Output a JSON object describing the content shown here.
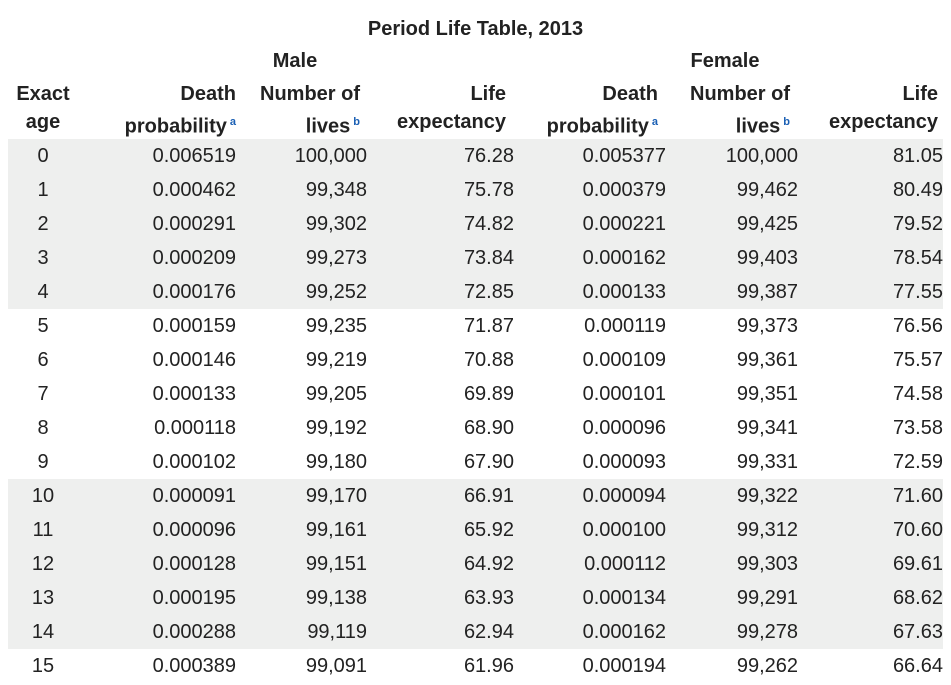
{
  "title": "Period Life Table, 2013",
  "groups": {
    "male": "Male",
    "female": "Female"
  },
  "headers": {
    "age": [
      "Exact",
      "age"
    ],
    "male_death": [
      "Death",
      "probability"
    ],
    "male_lives": [
      "Number of",
      "lives"
    ],
    "male_expectancy": [
      "Life",
      "expectancy"
    ],
    "female_death": [
      "Death",
      "probability"
    ],
    "female_lives": [
      "Number of",
      "lives"
    ],
    "female_expectancy": [
      "Life",
      "expectancy"
    ],
    "note_a": "a",
    "note_b": "b"
  },
  "rows": [
    [
      "0",
      "0.006519",
      "100,000",
      "76.28",
      "0.005377",
      "100,000",
      "81.05"
    ],
    [
      "1",
      "0.000462",
      "99,348",
      "75.78",
      "0.000379",
      "99,462",
      "80.49"
    ],
    [
      "2",
      "0.000291",
      "99,302",
      "74.82",
      "0.000221",
      "99,425",
      "79.52"
    ],
    [
      "3",
      "0.000209",
      "99,273",
      "73.84",
      "0.000162",
      "99,403",
      "78.54"
    ],
    [
      "4",
      "0.000176",
      "99,252",
      "72.85",
      "0.000133",
      "99,387",
      "77.55"
    ],
    [
      "5",
      "0.000159",
      "99,235",
      "71.87",
      "0.000119",
      "99,373",
      "76.56"
    ],
    [
      "6",
      "0.000146",
      "99,219",
      "70.88",
      "0.000109",
      "99,361",
      "75.57"
    ],
    [
      "7",
      "0.000133",
      "99,205",
      "69.89",
      "0.000101",
      "99,351",
      "74.58"
    ],
    [
      "8",
      "0.000118",
      "99,192",
      "68.90",
      "0.000096",
      "99,341",
      "73.58"
    ],
    [
      "9",
      "0.000102",
      "99,180",
      "67.90",
      "0.000093",
      "99,331",
      "72.59"
    ],
    [
      "10",
      "0.000091",
      "99,170",
      "66.91",
      "0.000094",
      "99,322",
      "71.60"
    ],
    [
      "11",
      "0.000096",
      "99,161",
      "65.92",
      "0.000100",
      "99,312",
      "70.60"
    ],
    [
      "12",
      "0.000128",
      "99,151",
      "64.92",
      "0.000112",
      "99,303",
      "69.61"
    ],
    [
      "13",
      "0.000195",
      "99,138",
      "63.93",
      "0.000134",
      "99,291",
      "68.62"
    ],
    [
      "14",
      "0.000288",
      "99,119",
      "62.94",
      "0.000162",
      "99,278",
      "67.63"
    ],
    [
      "15",
      "0.000389",
      "99,091",
      "61.96",
      "0.000194",
      "99,262",
      "66.64"
    ]
  ]
}
